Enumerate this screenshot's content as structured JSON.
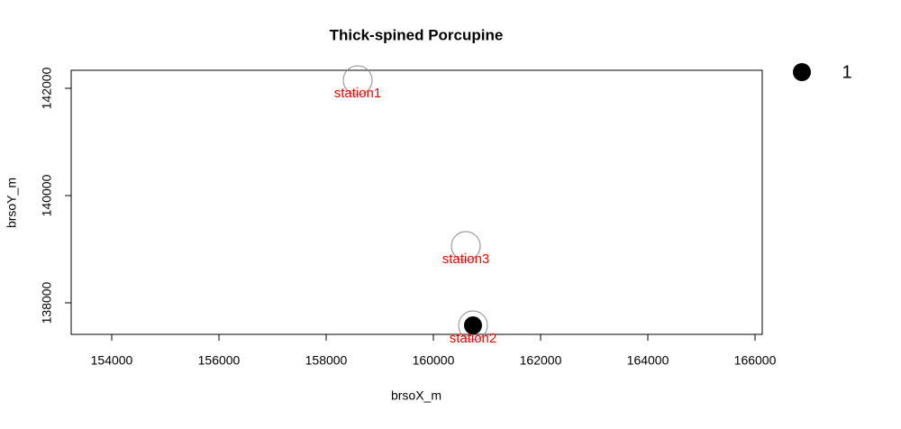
{
  "chart_data": {
    "type": "scatter",
    "title": "Thick-spined Porcupine",
    "x_label": "brsoX_m",
    "y_label": "brsoY_m",
    "stations": {
      "labels": [
        "station1",
        "station2",
        "station3"
      ],
      "x": [
        158588,
        160739,
        160605
      ],
      "y": [
        142151,
        137580,
        139059
      ],
      "color": "#888888",
      "label_color": "#ff0000"
    },
    "detections": {
      "x": [
        160739
      ],
      "y": [
        137580
      ],
      "sizes": [
        1
      ],
      "color": "#000000"
    },
    "size_legend": [
      1
    ],
    "xlim": [
      153244,
      166134
    ],
    "ylim": [
      137412,
      142336
    ],
    "xticks": [
      154000,
      156000,
      158000,
      160000,
      162000,
      164000,
      166000
    ],
    "yticks": [
      138000,
      140000,
      142000
    ],
    "grid": false
  }
}
